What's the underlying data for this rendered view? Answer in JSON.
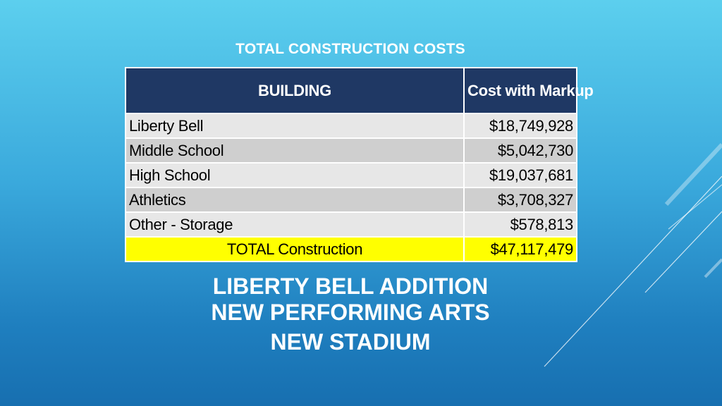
{
  "slide": {
    "table_title": "TOTAL CONSTRUCTION COSTS",
    "table": {
      "headers": [
        "BUILDING",
        "Cost with Markup"
      ],
      "rows": [
        {
          "building": "Liberty Bell",
          "cost": "$18,749,928"
        },
        {
          "building": "Middle School",
          "cost": "$5,042,730"
        },
        {
          "building": "High School",
          "cost": "$19,037,681"
        },
        {
          "building": "Athletics",
          "cost": "$3,708,327"
        },
        {
          "building": "Other - Storage",
          "cost": "$578,813"
        }
      ],
      "total": {
        "label": "TOTAL Construction",
        "cost": "$47,117,479"
      }
    },
    "subtitle_lines": [
      "LIBERTY BELL ADDITION",
      "NEW PERFORMING ARTS",
      "NEW STADIUM"
    ]
  },
  "colors": {
    "header_bg": "#1f3864",
    "total_bg": "#ffff00",
    "row_light": "#e7e7e7",
    "row_dark": "#cfcfcf"
  }
}
